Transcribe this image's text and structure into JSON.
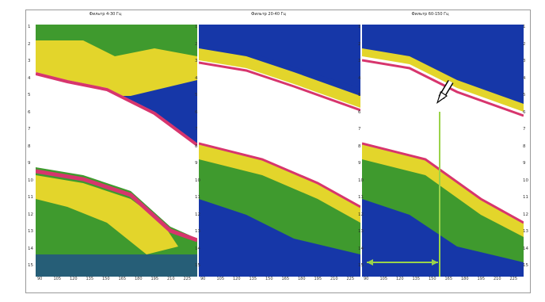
{
  "panels": [
    {
      "title": "Фильтр 4-30 Гц"
    },
    {
      "title": "Фильтр 20-40 Гц"
    },
    {
      "title": "Фильтр 60-150 Гц"
    }
  ],
  "y_ticks": [
    "1",
    "2",
    "3",
    "4",
    "5",
    "6",
    "7",
    "8",
    "9",
    "10",
    "11",
    "12",
    "13",
    "14",
    "15"
  ],
  "x_ticks": [
    "90",
    "105",
    "120",
    "135",
    "150",
    "165",
    "180",
    "195",
    "210",
    "225"
  ],
  "colors": {
    "low": "#1637a8",
    "mid": "#3f9a2e",
    "high": "#e3d52b",
    "edge": "#d7356d",
    "saturated": "#ffffff",
    "marker": "#9ad34a"
  }
}
